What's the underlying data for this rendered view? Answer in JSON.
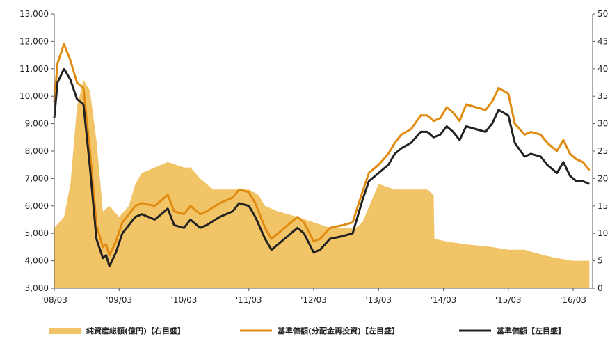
{
  "chart_data": {
    "type": "line",
    "title": "",
    "xlabel": "",
    "ylabel": "",
    "y2label": "",
    "grid": false,
    "legend_position": "bottom",
    "x_categories": [
      "'08/03",
      "'09/03",
      "'10/03",
      "'11/03",
      "'12/03",
      "'13/03",
      "'14/03",
      "'15/03",
      "'16/03"
    ],
    "ylim": [
      3000,
      13000
    ],
    "yticks": [
      "3,000",
      "4,000",
      "5,000",
      "6,000",
      "7,000",
      "8,000",
      "9,000",
      "10,000",
      "11,000",
      "12,000",
      "13,000"
    ],
    "y2lim": [
      0,
      50
    ],
    "y2ticks": [
      "0",
      "5",
      "10",
      "15",
      "20",
      "25",
      "30",
      "35",
      "40",
      "45",
      "50"
    ],
    "colors": {
      "area": "#f2c468",
      "reinvested": "#e08a10",
      "nav": "#222222"
    },
    "series": [
      {
        "name": "純資産総額(億円)【右目盛】",
        "type": "area",
        "axis": "right",
        "x": [
          2008.25,
          2008.4,
          2008.5,
          2008.6,
          2008.7,
          2008.8,
          2008.9,
          2009.0,
          2009.1,
          2009.25,
          2009.4,
          2009.5,
          2009.6,
          2009.8,
          2010.0,
          2010.25,
          2010.35,
          2010.5,
          2010.7,
          2011.0,
          2011.25,
          2011.4,
          2011.5,
          2011.7,
          2012.0,
          2012.25,
          2012.5,
          2012.7,
          2012.9,
          2013.0,
          2013.25,
          2013.5,
          2013.8,
          2014.0,
          2014.1,
          2014.11,
          2014.3,
          2014.6,
          2015.0,
          2015.25,
          2015.5,
          2015.8,
          2016.0,
          2016.25,
          2016.5
        ],
        "values": [
          11,
          13,
          19,
          33,
          38,
          36,
          27,
          14,
          15,
          13,
          15,
          19,
          21,
          22,
          23,
          22,
          22,
          20,
          18,
          18,
          18,
          17,
          15,
          14,
          13,
          12,
          11,
          11,
          11,
          12,
          19,
          18,
          18,
          18,
          17,
          9,
          8.5,
          8,
          7.5,
          7,
          7,
          6,
          5.5,
          5,
          5
        ]
      },
      {
        "name": "基準価額(分配金再投資)【左目盛】",
        "type": "line",
        "axis": "left",
        "x": [
          2008.25,
          2008.3,
          2008.4,
          2008.5,
          2008.6,
          2008.7,
          2008.8,
          2008.9,
          2009.0,
          2009.05,
          2009.1,
          2009.2,
          2009.3,
          2009.4,
          2009.5,
          2009.6,
          2009.8,
          2010.0,
          2010.1,
          2010.25,
          2010.35,
          2010.5,
          2010.6,
          2010.8,
          2011.0,
          2011.1,
          2011.25,
          2011.35,
          2011.5,
          2011.6,
          2011.7,
          2011.8,
          2012.0,
          2012.1,
          2012.25,
          2012.35,
          2012.5,
          2012.7,
          2012.85,
          2013.0,
          2013.1,
          2013.25,
          2013.4,
          2013.5,
          2013.6,
          2013.75,
          2013.9,
          2014.0,
          2014.1,
          2014.2,
          2014.3,
          2014.4,
          2014.5,
          2014.6,
          2014.75,
          2014.9,
          2015.0,
          2015.1,
          2015.25,
          2015.35,
          2015.5,
          2015.6,
          2015.75,
          2015.85,
          2016.0,
          2016.1,
          2016.2,
          2016.3,
          2016.4,
          2016.5
        ],
        "values": [
          9800,
          11200,
          11900,
          11300,
          10500,
          10300,
          8000,
          5300,
          4500,
          4600,
          4200,
          4700,
          5400,
          5700,
          6000,
          6100,
          6000,
          6400,
          5800,
          5700,
          6000,
          5700,
          5800,
          6100,
          6300,
          6600,
          6500,
          6100,
          5200,
          4800,
          5000,
          5200,
          5600,
          5400,
          4700,
          4800,
          5200,
          5300,
          5400,
          6500,
          7200,
          7500,
          7900,
          8300,
          8600,
          8800,
          9300,
          9300,
          9100,
          9200,
          9600,
          9400,
          9100,
          9700,
          9600,
          9500,
          9800,
          10300,
          10100,
          9000,
          8600,
          8700,
          8600,
          8300,
          8000,
          8400,
          7900,
          7700,
          7600,
          7300
        ]
      },
      {
        "name": "基準価額【左目盛】",
        "type": "line",
        "axis": "left",
        "x": [
          2008.25,
          2008.3,
          2008.4,
          2008.5,
          2008.6,
          2008.7,
          2008.8,
          2008.9,
          2009.0,
          2009.05,
          2009.1,
          2009.2,
          2009.3,
          2009.4,
          2009.5,
          2009.6,
          2009.8,
          2010.0,
          2010.1,
          2010.25,
          2010.35,
          2010.5,
          2010.6,
          2010.8,
          2011.0,
          2011.1,
          2011.25,
          2011.35,
          2011.5,
          2011.6,
          2011.7,
          2011.8,
          2012.0,
          2012.1,
          2012.25,
          2012.35,
          2012.5,
          2012.7,
          2012.85,
          2013.0,
          2013.1,
          2013.25,
          2013.4,
          2013.5,
          2013.6,
          2013.75,
          2013.9,
          2014.0,
          2014.1,
          2014.2,
          2014.3,
          2014.4,
          2014.5,
          2014.6,
          2014.75,
          2014.9,
          2015.0,
          2015.1,
          2015.25,
          2015.35,
          2015.5,
          2015.6,
          2015.75,
          2015.85,
          2016.0,
          2016.1,
          2016.2,
          2016.3,
          2016.4,
          2016.5
        ],
        "values": [
          9200,
          10500,
          11000,
          10600,
          9900,
          9700,
          7400,
          4800,
          4100,
          4200,
          3800,
          4300,
          5000,
          5300,
          5600,
          5700,
          5500,
          5900,
          5300,
          5200,
          5500,
          5200,
          5300,
          5600,
          5800,
          6100,
          6000,
          5600,
          4800,
          4400,
          4600,
          4800,
          5200,
          5000,
          4300,
          4400,
          4800,
          4900,
          5000,
          6200,
          6900,
          7200,
          7500,
          7900,
          8100,
          8300,
          8700,
          8700,
          8500,
          8600,
          8900,
          8700,
          8400,
          8900,
          8800,
          8700,
          9000,
          9500,
          9300,
          8300,
          7800,
          7900,
          7800,
          7500,
          7200,
          7600,
          7100,
          6900,
          6900,
          6800
        ]
      }
    ]
  }
}
